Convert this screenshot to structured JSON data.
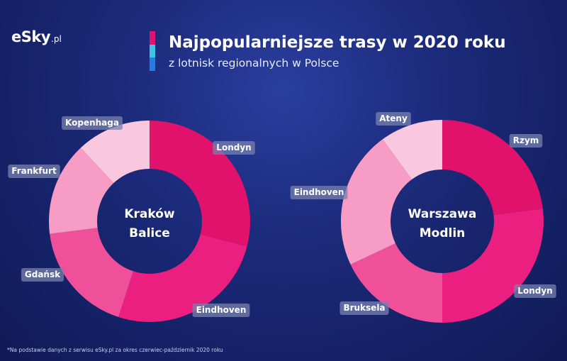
{
  "logo": {
    "main": "eSky",
    "sub": ".pl"
  },
  "title": "Najpopularniejsze trasy w 2020 roku",
  "subtitle": "z lotnisk regionalnych w Polsce",
  "footnote": "*Na podstawie danych z serwisu eSky.pl za okres czerwiec-październik 2020 roku",
  "colors": {
    "bar1": "#e0126e",
    "bar2": "#3cc3e6",
    "bar3": "#2a7ce0"
  },
  "chart_data": [
    {
      "type": "pie",
      "center_label": [
        "Kraków",
        "Balice"
      ],
      "slices": [
        {
          "label": "Londyn",
          "value": 29,
          "color": "#e0126b"
        },
        {
          "label": "Eindhoven",
          "value": 26,
          "color": "#ea1f80"
        },
        {
          "label": "Gdańsk",
          "value": 18,
          "color": "#f0509a"
        },
        {
          "label": "Frankfurt",
          "value": 15,
          "color": "#f79cc5"
        },
        {
          "label": "Kopenhaga",
          "value": 12,
          "color": "#f9c8de"
        }
      ]
    },
    {
      "type": "pie",
      "center_label": [
        "Warszawa",
        "Modlin"
      ],
      "slices": [
        {
          "label": "Rzym",
          "value": 23,
          "color": "#e0126b"
        },
        {
          "label": "Londyn",
          "value": 27,
          "color": "#ea1f80"
        },
        {
          "label": "Bruksela",
          "value": 18,
          "color": "#f0509a"
        },
        {
          "label": "Eindhoven",
          "value": 22,
          "color": "#f79cc5"
        },
        {
          "label": "Ateny",
          "value": 10,
          "color": "#f9c8de"
        }
      ]
    }
  ]
}
